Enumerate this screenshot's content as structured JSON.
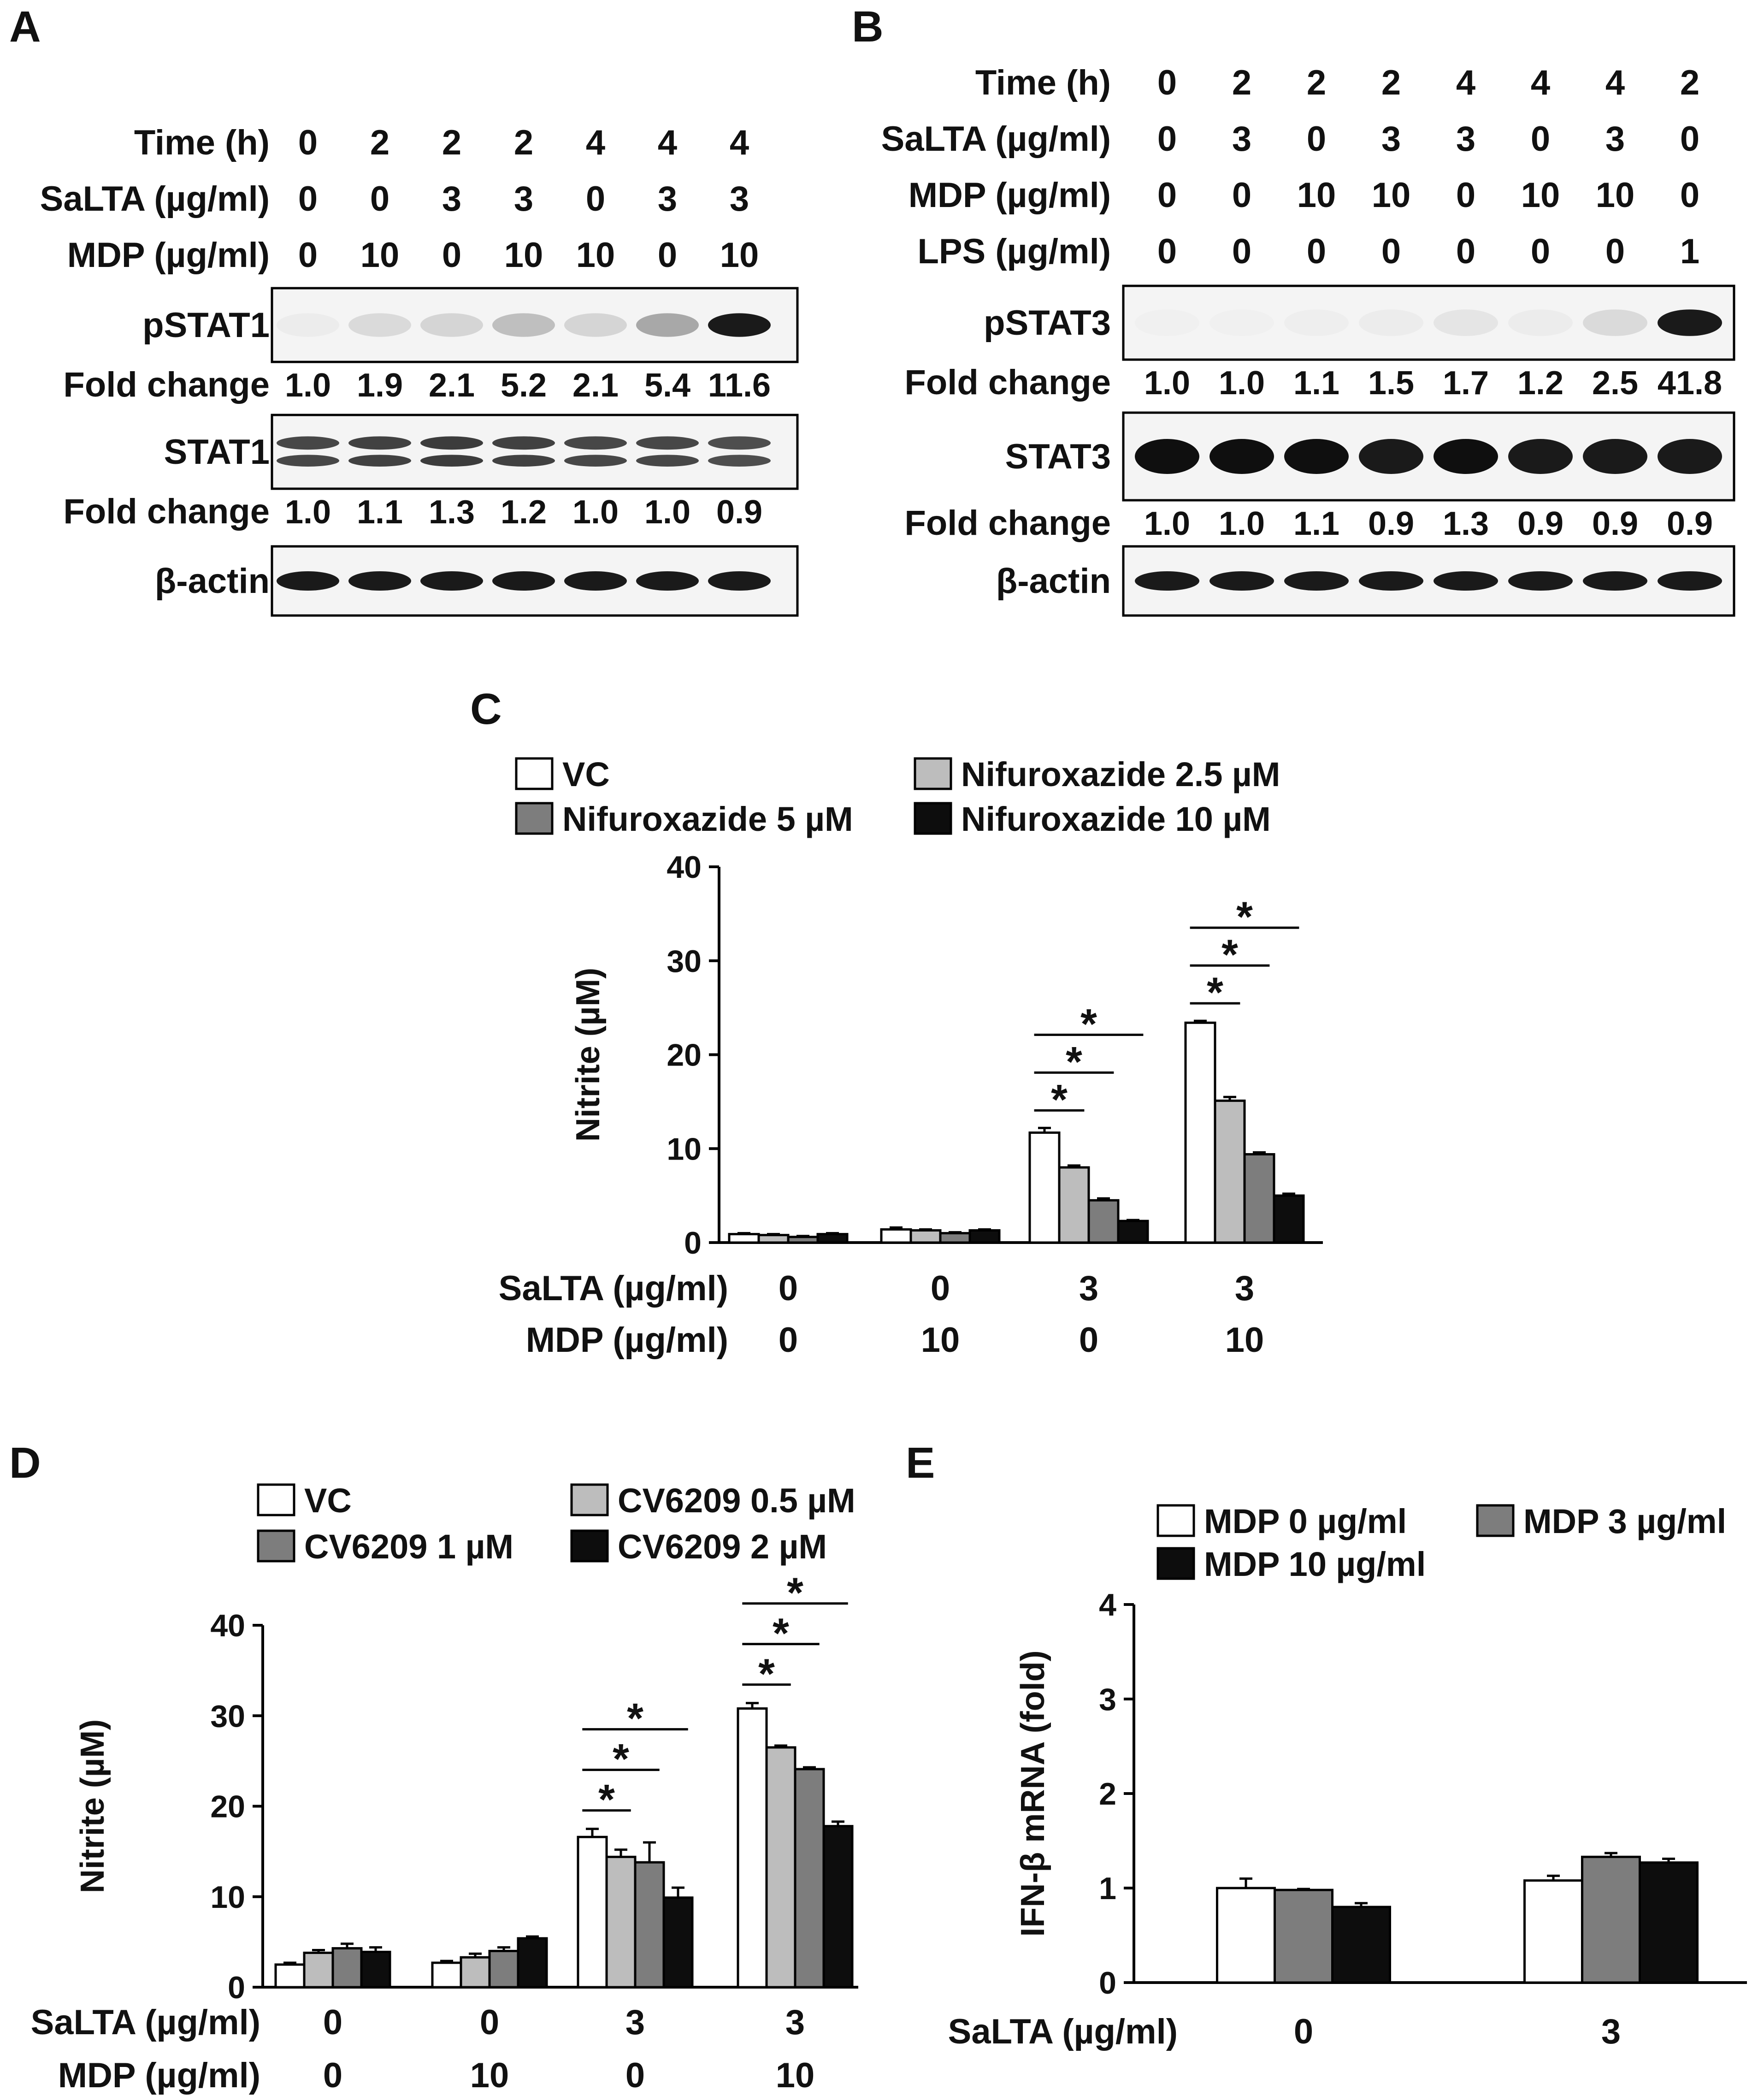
{
  "panels": {
    "A": {
      "letter": "A",
      "rows": [
        {
          "label": "Time (h)",
          "values": [
            "0",
            "2",
            "2",
            "2",
            "4",
            "4",
            "4"
          ]
        },
        {
          "label": "SaLTA (µg/ml)",
          "values": [
            "0",
            "0",
            "3",
            "3",
            "0",
            "3",
            "3"
          ]
        },
        {
          "label": "MDP (µg/ml)",
          "values": [
            "0",
            "10",
            "0",
            "10",
            "10",
            "0",
            "10"
          ]
        }
      ],
      "blots": [
        {
          "label": "pSTAT1",
          "fold_label": "Fold change",
          "fold": [
            "1.0",
            "1.9",
            "2.1",
            "5.2",
            "2.1",
            "5.4",
            "11.6"
          ],
          "band_intensity": [
            0.02,
            0.1,
            0.12,
            0.22,
            0.12,
            0.32,
            0.95
          ]
        },
        {
          "label": "STAT1",
          "fold_label": "Fold change",
          "fold": [
            "1.0",
            "1.1",
            "1.3",
            "1.2",
            "1.0",
            "1.0",
            "0.9"
          ],
          "band_intensity": [
            0.75,
            0.78,
            0.8,
            0.78,
            0.75,
            0.75,
            0.72
          ]
        },
        {
          "label": "β-actin",
          "band_intensity": [
            0.95,
            0.95,
            0.95,
            0.95,
            0.95,
            0.95,
            0.95
          ]
        }
      ]
    },
    "B": {
      "letter": "B",
      "rows": [
        {
          "label": "Time (h)",
          "values": [
            "0",
            "2",
            "2",
            "2",
            "4",
            "4",
            "4",
            "2"
          ]
        },
        {
          "label": "SaLTA (µg/ml)",
          "values": [
            "0",
            "3",
            "0",
            "3",
            "3",
            "0",
            "3",
            "0"
          ]
        },
        {
          "label": "MDP (µg/ml)",
          "values": [
            "0",
            "0",
            "10",
            "10",
            "0",
            "10",
            "10",
            "0"
          ]
        },
        {
          "label": "LPS (µg/ml)",
          "values": [
            "0",
            "0",
            "0",
            "0",
            "0",
            "0",
            "0",
            "1"
          ]
        }
      ],
      "blots": [
        {
          "label": "pSTAT3",
          "fold_label": "Fold change",
          "fold": [
            "1.0",
            "1.0",
            "1.1",
            "1.5",
            "1.7",
            "1.2",
            "2.5",
            "41.8"
          ],
          "band_intensity": [
            0.0,
            0.0,
            0.01,
            0.02,
            0.05,
            0.02,
            0.1,
            0.95
          ]
        },
        {
          "label": "STAT3",
          "fold_label": "Fold change",
          "fold": [
            "1.0",
            "1.0",
            "1.1",
            "0.9",
            "1.3",
            "0.9",
            "0.9",
            "0.9"
          ],
          "band_intensity": [
            1.0,
            1.0,
            1.0,
            0.95,
            1.0,
            0.95,
            0.95,
            0.95
          ]
        },
        {
          "label": "β-actin",
          "band_intensity": [
            0.95,
            0.95,
            0.95,
            0.95,
            0.95,
            0.95,
            0.95,
            0.95
          ]
        }
      ]
    },
    "C": {
      "letter": "C"
    },
    "D": {
      "letter": "D"
    },
    "E": {
      "letter": "E"
    }
  },
  "colors": {
    "white": "#ffffff",
    "light_gray": "#bdbdbd",
    "dark_gray": "#7d7d7d",
    "black": "#0d0d0d"
  },
  "chart_data": [
    {
      "panel": "C",
      "type": "bar",
      "ylabel": "Nitrite (µM)",
      "ylim": [
        0,
        40
      ],
      "yticks": [
        0,
        10,
        20,
        30,
        40
      ],
      "category_rows": [
        {
          "label": "SaLTA (µg/ml)",
          "values": [
            "0",
            "0",
            "3",
            "3"
          ]
        },
        {
          "label": "MDP (µg/ml)",
          "values": [
            "0",
            "10",
            "0",
            "10"
          ]
        }
      ],
      "series": [
        {
          "name": "VC",
          "values": [
            0.9,
            1.4,
            11.7,
            23.4
          ],
          "errors": [
            0.1,
            0.2,
            0.5,
            0.2
          ]
        },
        {
          "name": "Nifuroxazide 2.5 µM",
          "values": [
            0.8,
            1.3,
            8.0,
            15.1
          ],
          "errors": [
            0.1,
            0.1,
            0.2,
            0.4
          ]
        },
        {
          "name": "Nifuroxazide 5 µM",
          "values": [
            0.6,
            1.0,
            4.5,
            9.4
          ],
          "errors": [
            0.1,
            0.1,
            0.2,
            0.2
          ]
        },
        {
          "name": "Nifuroxazide 10 µM",
          "values": [
            0.9,
            1.3,
            2.3,
            5.0
          ],
          "errors": [
            0.1,
            0.1,
            0.1,
            0.2
          ]
        }
      ],
      "legend": {
        "items": [
          "VC",
          "Nifuroxazide 2.5 µM",
          "Nifuroxazide 5 µM",
          "Nifuroxazide 10 µM"
        ],
        "placement": "top"
      },
      "significance": [
        {
          "group": 2,
          "marks": [
            [
              0,
              1
            ],
            [
              0,
              2
            ],
            [
              0,
              3
            ]
          ],
          "symbol": "*"
        },
        {
          "group": 3,
          "marks": [
            [
              0,
              1
            ],
            [
              0,
              2
            ],
            [
              0,
              3
            ]
          ],
          "symbol": "*"
        }
      ]
    },
    {
      "panel": "D",
      "type": "bar",
      "ylabel": "Nitrite (µM)",
      "ylim": [
        0,
        40
      ],
      "yticks": [
        0,
        10,
        20,
        30,
        40
      ],
      "category_rows": [
        {
          "label": "SaLTA (µg/ml)",
          "values": [
            "0",
            "0",
            "3",
            "3"
          ]
        },
        {
          "label": "MDP (µg/ml)",
          "values": [
            "0",
            "10",
            "0",
            "10"
          ]
        }
      ],
      "series": [
        {
          "name": "VC",
          "values": [
            2.5,
            2.7,
            16.6,
            30.8
          ],
          "errors": [
            0.2,
            0.2,
            0.9,
            0.6
          ]
        },
        {
          "name": "CV6209 0.5 µM",
          "values": [
            3.8,
            3.3,
            14.4,
            26.5
          ],
          "errors": [
            0.3,
            0.4,
            0.8,
            0.2
          ]
        },
        {
          "name": "CV6209 1 µM",
          "values": [
            4.3,
            4.0,
            13.8,
            24.1
          ],
          "errors": [
            0.5,
            0.4,
            2.2,
            0.2
          ]
        },
        {
          "name": "CV6209 2 µM",
          "values": [
            3.9,
            5.4,
            9.9,
            17.8
          ],
          "errors": [
            0.5,
            0.2,
            1.1,
            0.5
          ]
        }
      ],
      "legend": {
        "items": [
          "VC",
          "CV6209 0.5 µM",
          "CV6209 1 µM",
          "CV6209 2 µM"
        ],
        "placement": "top"
      },
      "significance": [
        {
          "group": 2,
          "marks": [
            [
              0,
              1
            ],
            [
              0,
              2
            ],
            [
              0,
              3
            ]
          ],
          "symbol": "*"
        },
        {
          "group": 3,
          "marks": [
            [
              0,
              1
            ],
            [
              0,
              2
            ],
            [
              0,
              3
            ]
          ],
          "symbol": "*"
        }
      ]
    },
    {
      "panel": "E",
      "type": "bar",
      "ylabel": "IFN-β mRNA (fold)",
      "ylim": [
        0,
        4
      ],
      "yticks": [
        0,
        1,
        2,
        3,
        4
      ],
      "category_rows": [
        {
          "label": "SaLTA (µg/ml)",
          "values": [
            "0",
            "3"
          ]
        }
      ],
      "series": [
        {
          "name": "MDP 0 µg/ml",
          "values": [
            1.0,
            1.08
          ],
          "errors": [
            0.1,
            0.05
          ]
        },
        {
          "name": "MDP 3 µg/ml",
          "values": [
            0.98,
            1.33
          ],
          "errors": [
            0.01,
            0.04
          ]
        },
        {
          "name": "MDP 10 µg/ml",
          "values": [
            0.8,
            1.27
          ],
          "errors": [
            0.04,
            0.04
          ]
        }
      ],
      "legend": {
        "items": [
          "MDP 0 µg/ml",
          "MDP 3 µg/ml",
          "MDP 10 µg/ml"
        ],
        "placement": "top"
      },
      "significance": []
    }
  ]
}
